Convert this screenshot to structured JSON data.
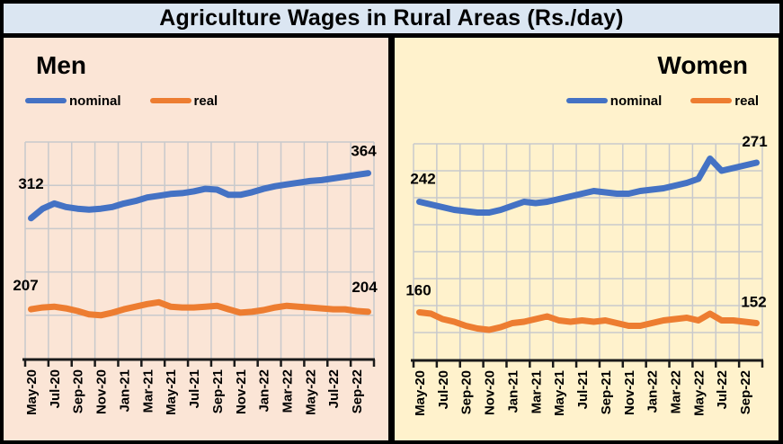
{
  "title": "Agriculture Wages in Rural Areas (Rs./day)",
  "colors": {
    "title_bg": "#dbe6f2",
    "men_bg": "#fbe5d6",
    "women_bg": "#fff2cc",
    "nominal": "#4472c4",
    "real": "#ed7d31",
    "gridline": "#c8c9cc",
    "axis": "#1a1a1a"
  },
  "panels": [
    {
      "id": "men",
      "heading": "Men",
      "bg": "#fbe5d6",
      "legend": {
        "nominal": "nominal",
        "real": "real"
      }
    },
    {
      "id": "women",
      "heading": "Women",
      "bg": "#fff2cc",
      "legend": {
        "nominal": "nominal",
        "real": "real"
      }
    }
  ],
  "chart_data": [
    {
      "type": "line",
      "title": "Men",
      "categories": [
        "May-20",
        "Jun-20",
        "Jul-20",
        "Aug-20",
        "Sep-20",
        "Oct-20",
        "Nov-20",
        "Dec-20",
        "Jan-21",
        "Feb-21",
        "Mar-21",
        "Apr-21",
        "May-21",
        "Jun-21",
        "Jul-21",
        "Aug-21",
        "Sep-21",
        "Oct-21",
        "Nov-21",
        "Dec-21",
        "Jan-22",
        "Feb-22",
        "Mar-22",
        "Apr-22",
        "May-22",
        "Jun-22",
        "Jul-22",
        "Aug-22",
        "Sep-22",
        "Oct-22"
      ],
      "x_tick_every": 2,
      "series": [
        {
          "name": "nominal",
          "color": "#4472c4",
          "values": [
            312,
            323,
            329,
            325,
            323,
            322,
            323,
            325,
            329,
            332,
            336,
            338,
            340,
            341,
            343,
            346,
            345,
            339,
            339,
            342,
            346,
            349,
            351,
            353,
            355,
            356,
            358,
            360,
            362,
            364
          ]
        },
        {
          "name": "real",
          "color": "#ed7d31",
          "values": [
            207,
            209,
            210,
            208,
            205,
            201,
            200,
            203,
            207,
            210,
            213,
            215,
            210,
            209,
            209,
            210,
            211,
            207,
            203,
            204,
            206,
            209,
            211,
            210,
            209,
            208,
            207,
            207,
            205,
            204
          ]
        }
      ],
      "ylim": [
        150,
        400
      ],
      "gridline_step": 50,
      "grid": "on",
      "legend_position": "top-left",
      "annotations": {
        "nominal_start": "312",
        "nominal_end": "364",
        "real_start": "207",
        "real_end": "204"
      }
    },
    {
      "type": "line",
      "title": "Women",
      "categories": [
        "May-20",
        "Jun-20",
        "Jul-20",
        "Aug-20",
        "Sep-20",
        "Oct-20",
        "Nov-20",
        "Dec-20",
        "Jan-21",
        "Feb-21",
        "Mar-21",
        "Apr-21",
        "May-21",
        "Jun-21",
        "Jul-21",
        "Aug-21",
        "Sep-21",
        "Oct-21",
        "Nov-21",
        "Dec-21",
        "Jan-22",
        "Feb-22",
        "Mar-22",
        "Apr-22",
        "May-22",
        "Jun-22",
        "Jul-22",
        "Aug-22",
        "Sep-22",
        "Oct-22"
      ],
      "x_tick_every": 2,
      "series": [
        {
          "name": "nominal",
          "color": "#4472c4",
          "values": [
            242,
            240,
            238,
            236,
            235,
            234,
            234,
            236,
            239,
            242,
            241,
            242,
            244,
            246,
            248,
            250,
            249,
            248,
            248,
            250,
            251,
            252,
            254,
            256,
            259,
            274,
            265,
            267,
            269,
            271
          ]
        },
        {
          "name": "real",
          "color": "#ed7d31",
          "values": [
            160,
            159,
            155,
            153,
            150,
            148,
            147,
            149,
            152,
            153,
            155,
            157,
            154,
            153,
            154,
            153,
            154,
            152,
            150,
            150,
            152,
            154,
            155,
            156,
            154,
            159,
            154,
            154,
            153,
            152
          ]
        }
      ],
      "ylim": [
        125,
        285
      ],
      "gridline_step": 20,
      "grid": "on",
      "legend_position": "top-right",
      "annotations": {
        "nominal_start": "242",
        "nominal_end": "271",
        "real_start": "160",
        "real_end": "152"
      }
    }
  ]
}
